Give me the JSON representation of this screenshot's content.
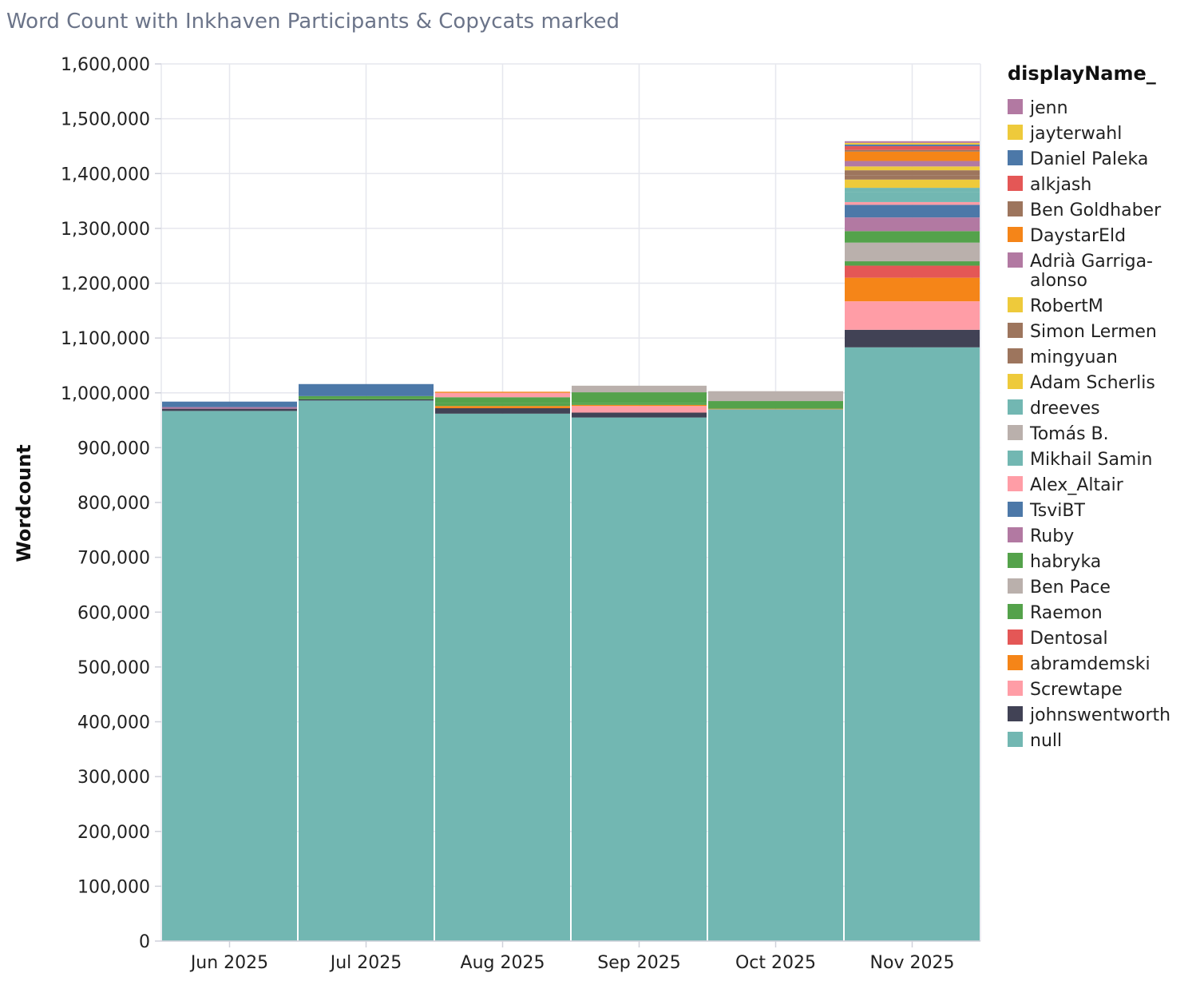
{
  "title": "Word Count with Inkhaven Participants & Copycats marked",
  "chart_data": {
    "type": "bar",
    "stacked": true,
    "title": "Word Count with Inkhaven Participants & Copycats marked",
    "xlabel": "",
    "ylabel": "Wordcount",
    "ylim": [
      0,
      1600000
    ],
    "yticks": [
      0,
      100000,
      200000,
      300000,
      400000,
      500000,
      600000,
      700000,
      800000,
      900000,
      1000000,
      1100000,
      1200000,
      1300000,
      1400000,
      1500000,
      1600000
    ],
    "ytick_labels": [
      "0",
      "100,000",
      "200,000",
      "300,000",
      "400,000",
      "500,000",
      "600,000",
      "700,000",
      "800,000",
      "900,000",
      "1,000,000",
      "1,100,000",
      "1,200,000",
      "1,300,000",
      "1,400,000",
      "1,500,000",
      "1,600,000"
    ],
    "categories": [
      "Jun 2025",
      "Jul 2025",
      "Aug 2025",
      "Sep 2025",
      "Oct 2025",
      "Nov 2025"
    ],
    "grid": true,
    "legend": {
      "title": "displayName_",
      "placement": "right"
    },
    "series": [
      {
        "name": "null",
        "color": "#72b7b2",
        "values": [
          967000,
          986000,
          962000,
          955000,
          970000,
          1083000
        ]
      },
      {
        "name": "johnswentworth",
        "color": "#414255",
        "values": [
          4000,
          2000,
          10000,
          9000,
          0,
          32000
        ]
      },
      {
        "name": "Screwtape",
        "color": "#ff9da6",
        "values": [
          0,
          0,
          0,
          12000,
          0,
          52000
        ]
      },
      {
        "name": "abramdemski",
        "color": "#f58518",
        "values": [
          0,
          0,
          4000,
          2000,
          1000,
          43000
        ]
      },
      {
        "name": "Dentosal",
        "color": "#e45756",
        "values": [
          0,
          0,
          0,
          0,
          0,
          22000
        ]
      },
      {
        "name": "Raemon",
        "color": "#54a24b",
        "values": [
          0,
          2000,
          6000,
          3000,
          0,
          8000
        ]
      },
      {
        "name": "Ben Pace",
        "color": "#bab0ac",
        "values": [
          0,
          0,
          0,
          0,
          0,
          34000
        ]
      },
      {
        "name": "habryka",
        "color": "#54a24b",
        "values": [
          0,
          4000,
          10000,
          20000,
          14000,
          21000
        ]
      },
      {
        "name": "Ruby",
        "color": "#b279a2",
        "values": [
          3000,
          0,
          0,
          0,
          0,
          25000
        ]
      },
      {
        "name": "TsviBT",
        "color": "#4c78a8",
        "values": [
          10000,
          22000,
          0,
          0,
          0,
          23000
        ]
      },
      {
        "name": "Alex_Altair",
        "color": "#ff9da6",
        "values": [
          0,
          0,
          8000,
          0,
          0,
          5000
        ]
      },
      {
        "name": "Mikhail Samin",
        "color": "#72b7b2",
        "values": [
          0,
          0,
          0,
          0,
          0,
          18000
        ]
      },
      {
        "name": "Tomás B.",
        "color": "#bab0ac",
        "values": [
          0,
          0,
          0,
          12000,
          18000,
          0
        ]
      },
      {
        "name": "dreeves",
        "color": "#72b7b2",
        "values": [
          0,
          0,
          0,
          0,
          0,
          8000
        ]
      },
      {
        "name": "Adam Scherlis",
        "color": "#eeca3b",
        "values": [
          0,
          0,
          0,
          0,
          0,
          15000
        ]
      },
      {
        "name": "mingyuan",
        "color": "#9d755d",
        "values": [
          0,
          0,
          0,
          0,
          0,
          8000
        ]
      },
      {
        "name": "Simon Lermen",
        "color": "#9d755d",
        "values": [
          0,
          0,
          0,
          0,
          0,
          9000
        ]
      },
      {
        "name": "RobertM",
        "color": "#eeca3b",
        "values": [
          0,
          0,
          0,
          0,
          0,
          7000
        ]
      },
      {
        "name": "Adrià Garriga-alonso",
        "color": "#b279a2",
        "values": [
          0,
          0,
          0,
          0,
          0,
          10000
        ]
      },
      {
        "name": "DaystarEld",
        "color": "#f58518",
        "values": [
          0,
          0,
          2000,
          0,
          0,
          17000
        ]
      },
      {
        "name": "Ben Goldhaber",
        "color": "#9d755d",
        "values": [
          0,
          0,
          0,
          0,
          0,
          3000
        ]
      },
      {
        "name": "alkjash",
        "color": "#e45756",
        "values": [
          0,
          0,
          0,
          0,
          0,
          7000
        ]
      },
      {
        "name": "Daniel Paleka",
        "color": "#4c78a8",
        "values": [
          0,
          0,
          0,
          0,
          0,
          3000
        ]
      },
      {
        "name": "jayterwahl",
        "color": "#eeca3b",
        "values": [
          0,
          0,
          0,
          0,
          0,
          3000
        ]
      },
      {
        "name": "jenn",
        "color": "#b279a2",
        "values": [
          0,
          0,
          0,
          0,
          0,
          3000
        ]
      }
    ],
    "legend_entries": [
      {
        "label": "jenn",
        "color": "#b279a2"
      },
      {
        "label": "jayterwahl",
        "color": "#eeca3b"
      },
      {
        "label": "Daniel Paleka",
        "color": "#4c78a8"
      },
      {
        "label": "alkjash",
        "color": "#e45756"
      },
      {
        "label": "Ben Goldhaber",
        "color": "#9d755d"
      },
      {
        "label": "DaystarEld",
        "color": "#f58518"
      },
      {
        "label": "Adrià Garriga-",
        "label2": "alonso",
        "color": "#b279a2"
      },
      {
        "label": "RobertM",
        "color": "#eeca3b"
      },
      {
        "label": "Simon Lermen",
        "color": "#9d755d"
      },
      {
        "label": "mingyuan",
        "color": "#9d755d"
      },
      {
        "label": "Adam Scherlis",
        "color": "#eeca3b"
      },
      {
        "label": "dreeves",
        "color": "#72b7b2"
      },
      {
        "label": "Tomás B.",
        "color": "#bab0ac"
      },
      {
        "label": "Mikhail Samin",
        "color": "#72b7b2"
      },
      {
        "label": "Alex_Altair",
        "color": "#ff9da6"
      },
      {
        "label": "TsviBT",
        "color": "#4c78a8"
      },
      {
        "label": "Ruby",
        "color": "#b279a2"
      },
      {
        "label": "habryka",
        "color": "#54a24b"
      },
      {
        "label": "Ben Pace",
        "color": "#bab0ac"
      },
      {
        "label": "Raemon",
        "color": "#54a24b"
      },
      {
        "label": "Dentosal",
        "color": "#e45756"
      },
      {
        "label": "abramdemski",
        "color": "#f58518"
      },
      {
        "label": "Screwtape",
        "color": "#ff9da6"
      },
      {
        "label": "johnswentworth",
        "color": "#414255"
      },
      {
        "label": "null",
        "color": "#72b7b2"
      }
    ]
  }
}
